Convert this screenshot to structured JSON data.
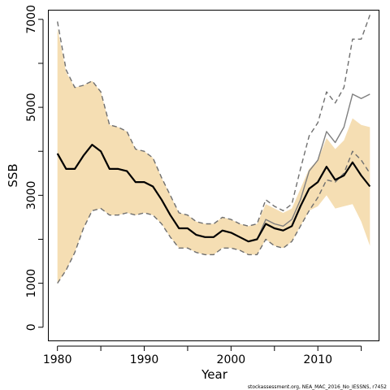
{
  "chart_data": {
    "type": "line",
    "xlabel": "Year",
    "ylabel": "SSB",
    "xlim": [
      1979,
      2017
    ],
    "ylim": [
      -300,
      7200
    ],
    "xticks": [
      1980,
      1990,
      2000,
      2010
    ],
    "yticks": [
      0,
      1000,
      3000,
      5000,
      7000
    ],
    "years": [
      1980,
      1981,
      1982,
      1983,
      1984,
      1985,
      1986,
      1987,
      1988,
      1989,
      1990,
      1991,
      1992,
      1993,
      1994,
      1995,
      1996,
      1997,
      1998,
      1999,
      2000,
      2001,
      2002,
      2003,
      2004,
      2005,
      2006,
      2007,
      2008,
      2009,
      2010,
      2011,
      2012,
      2013,
      2014,
      2015,
      2016
    ],
    "band": {
      "color": "#f5deb3",
      "upper": [
        6800,
        5800,
        5450,
        5500,
        5600,
        5350,
        4600,
        4550,
        4450,
        4050,
        4000,
        3850,
        3400,
        3000,
        2600,
        2550,
        2400,
        2350,
        2350,
        2500,
        2450,
        2350,
        2300,
        2350,
        2800,
        2700,
        2600,
        2700,
        3150,
        3600,
        3800,
        4300,
        4050,
        4250,
        4750,
        4600,
        4550
      ],
      "lower": [
        1000,
        1300,
        1700,
        2250,
        2650,
        2700,
        2550,
        2550,
        2600,
        2550,
        2600,
        2550,
        2350,
        2050,
        1800,
        1800,
        1700,
        1650,
        1650,
        1800,
        1800,
        1750,
        1650,
        1650,
        2000,
        1850,
        1800,
        1950,
        2300,
        2650,
        2750,
        3000,
        2700,
        2750,
        2800,
        2400,
        1850
      ]
    },
    "series": [
      {
        "color": "#000000",
        "style": "solid",
        "values": [
          3950,
          3600,
          3600,
          3900,
          4150,
          4000,
          3600,
          3600,
          3550,
          3300,
          3300,
          3200,
          2900,
          2550,
          2250,
          2250,
          2100,
          2050,
          2050,
          2200,
          2150,
          2050,
          1950,
          2000,
          2350,
          2250,
          2200,
          2300,
          2750,
          3150,
          3300,
          3650,
          3350,
          3450,
          3750,
          3450,
          3200
        ]
      },
      {
        "color": "#7f7f7f",
        "style": "solid",
        "values": [
          null,
          null,
          null,
          null,
          null,
          null,
          null,
          null,
          null,
          null,
          null,
          null,
          null,
          null,
          null,
          null,
          null,
          null,
          null,
          null,
          null,
          null,
          null,
          2000,
          2450,
          2350,
          2300,
          2450,
          2900,
          3550,
          3800,
          4450,
          4200,
          4550,
          5300,
          5200,
          5300
        ]
      },
      {
        "color": "#6f6f6f",
        "style": "dashed",
        "values": [
          6950,
          5850,
          5450,
          5500,
          5600,
          5350,
          4600,
          4550,
          4450,
          4050,
          4000,
          3850,
          3400,
          3000,
          2600,
          2550,
          2400,
          2350,
          2350,
          2500,
          2450,
          2350,
          2300,
          2350,
          2900,
          2750,
          2650,
          2800,
          3600,
          4350,
          4650,
          5350,
          5100,
          5450,
          6550,
          6550,
          7100
        ]
      },
      {
        "color": "#6f6f6f",
        "style": "dashed",
        "values": [
          1000,
          1300,
          1700,
          2250,
          2650,
          2700,
          2550,
          2550,
          2600,
          2550,
          2600,
          2550,
          2350,
          2050,
          1800,
          1800,
          1700,
          1650,
          1650,
          1800,
          1800,
          1750,
          1650,
          1650,
          2000,
          1850,
          1800,
          1950,
          2300,
          2650,
          2950,
          3350,
          3300,
          3500,
          4000,
          3800,
          3500
        ]
      }
    ],
    "grid": false,
    "legend": "none"
  },
  "credit": "stockassessment.org, NEA_MAC_2016_No_IESSNS, r7452"
}
